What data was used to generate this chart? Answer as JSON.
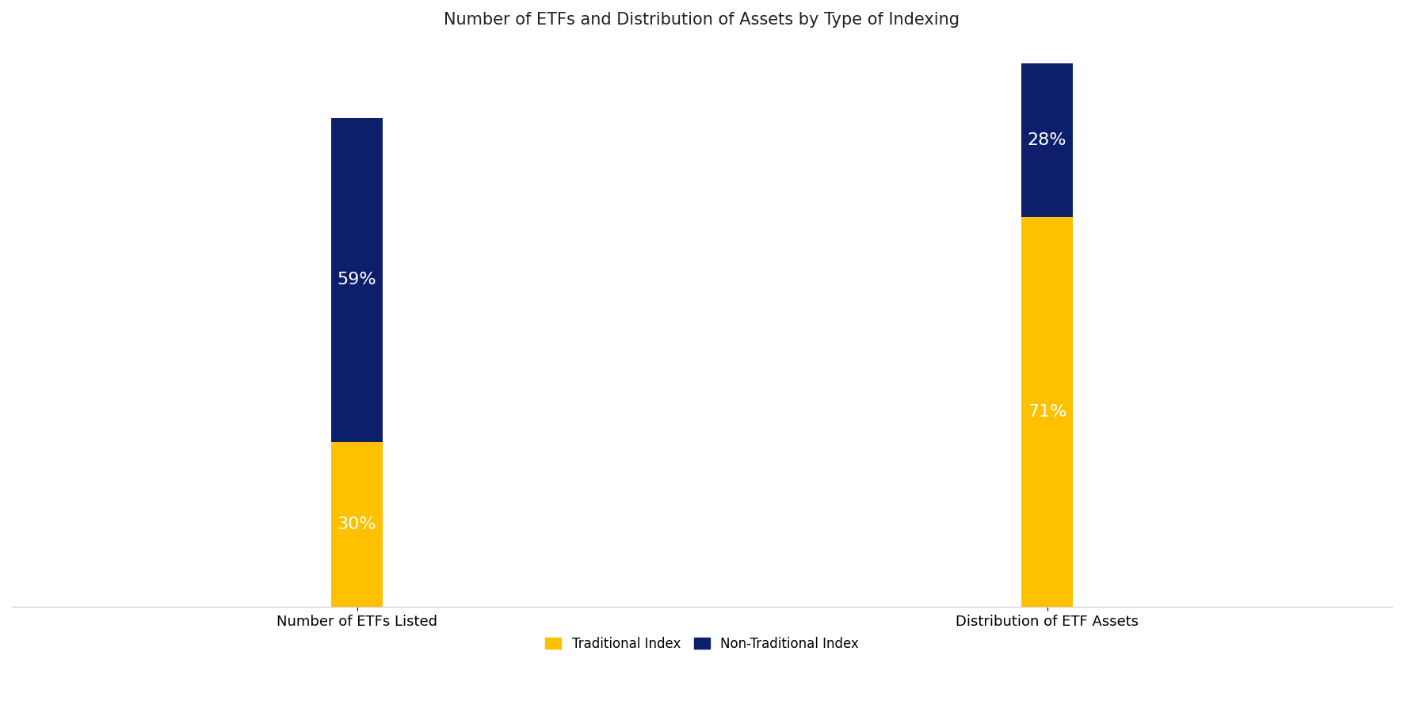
{
  "title": "Number of ETFs and Distribution of Assets by Type of Indexing",
  "categories": [
    "Number of ETFs Listed",
    "Distribution of ETF Assets"
  ],
  "traditional_values": [
    30,
    71
  ],
  "non_traditional_values": [
    59,
    28
  ],
  "traditional_color": "#FFC000",
  "non_traditional_color": "#0D1F6B",
  "label_traditional": "Traditional Index",
  "label_non_traditional": "Non-Traditional Index",
  "text_color_white": "#FFFFFF",
  "background_color": "#FFFFFF",
  "title_fontsize": 15,
  "label_fontsize": 13,
  "annotation_fontsize": 16,
  "legend_fontsize": 12,
  "bar_width": 0.15,
  "bar_positions": [
    1,
    3
  ],
  "xlim": [
    0,
    4
  ],
  "ylim": [
    0,
    1.02
  ],
  "xtick_positions": [
    1,
    3
  ]
}
